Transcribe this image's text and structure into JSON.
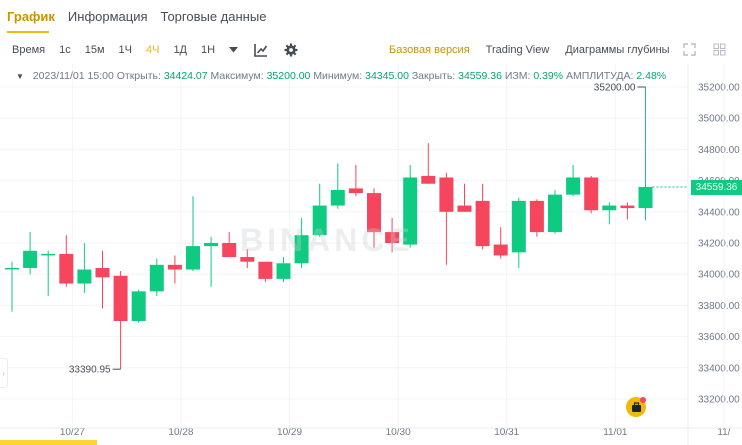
{
  "tabs": [
    {
      "label": "График",
      "active": true
    },
    {
      "label": "Информация",
      "active": false
    },
    {
      "label": "Торговые данные",
      "active": false
    }
  ],
  "toolbar": {
    "intervals": [
      "Время",
      "1с",
      "15м",
      "1Ч",
      "4Ч",
      "1Д",
      "1Н"
    ],
    "active_interval": "4Ч",
    "views": [
      "Базовая версия",
      "Trading View",
      "Диаграммы глубины"
    ],
    "active_view": "Базовая версия"
  },
  "info": {
    "datetime": "2023/11/01 15:00",
    "open_label": "Открыть:",
    "open": "34424.07",
    "high_label": "Максимум:",
    "high": "35200.00",
    "low_label": "Минимум:",
    "low": "34345.00",
    "close_label": "Закрыть:",
    "close": "34559.36",
    "change_label": "ИЗМ:",
    "change": "0.39%",
    "amp_label": "АМПЛИТУДА:",
    "amp": "2.48%"
  },
  "watermark": "BINANCE",
  "current_price": "34559.36",
  "colors": {
    "up": "#0ecb81",
    "down": "#f6465d",
    "accent": "#f0b90b",
    "grid": "#f3f4f6",
    "text": "#707a8a"
  },
  "chart_data": {
    "type": "candlestick",
    "y_ticks": [
      "35200.00",
      "35000.00",
      "34800.00",
      "34600.00",
      "34400.00",
      "34200.00",
      "34000.00",
      "33800.00",
      "33600.00",
      "33400.00",
      "33200.00"
    ],
    "ylim": [
      33110,
      35375
    ],
    "x_labels": [
      {
        "i": 1.4,
        "label": "10/27"
      },
      {
        "i": 7.4,
        "label": "10/28"
      },
      {
        "i": 13.4,
        "label": "10/29"
      },
      {
        "i": 19.4,
        "label": "10/30"
      },
      {
        "i": 25.4,
        "label": "10/31"
      },
      {
        "i": 31.4,
        "label": "11/01"
      },
      {
        "i": 37.4,
        "label": "11/"
      }
    ],
    "high_annotation": "35200.00",
    "low_annotation": "33390.95",
    "candles": [
      {
        "o": 34040,
        "h": 34080,
        "l": 33760,
        "c": 34040
      },
      {
        "o": 34040,
        "h": 34270,
        "l": 34000,
        "c": 34150
      },
      {
        "o": 34130,
        "h": 34150,
        "l": 33860,
        "c": 34130
      },
      {
        "o": 34130,
        "h": 34250,
        "l": 33920,
        "c": 33940
      },
      {
        "o": 33940,
        "h": 34200,
        "l": 33880,
        "c": 34030
      },
      {
        "o": 34040,
        "h": 34150,
        "l": 33780,
        "c": 33980
      },
      {
        "o": 33990,
        "h": 34020,
        "l": 33390.95,
        "c": 33700
      },
      {
        "o": 33700,
        "h": 33900,
        "l": 33690,
        "c": 33890
      },
      {
        "o": 33890,
        "h": 34100,
        "l": 33860,
        "c": 34060
      },
      {
        "o": 34060,
        "h": 34120,
        "l": 33940,
        "c": 34030
      },
      {
        "o": 34030,
        "h": 34500,
        "l": 34020,
        "c": 34180
      },
      {
        "o": 34180,
        "h": 34240,
        "l": 33920,
        "c": 34200
      },
      {
        "o": 34200,
        "h": 34270,
        "l": 34110,
        "c": 34110
      },
      {
        "o": 34110,
        "h": 34160,
        "l": 34040,
        "c": 34080
      },
      {
        "o": 34080,
        "h": 34080,
        "l": 33950,
        "c": 33970
      },
      {
        "o": 33970,
        "h": 34110,
        "l": 33950,
        "c": 34070
      },
      {
        "o": 34070,
        "h": 34360,
        "l": 34040,
        "c": 34250
      },
      {
        "o": 34250,
        "h": 34580,
        "l": 34240,
        "c": 34440
      },
      {
        "o": 34440,
        "h": 34710,
        "l": 34420,
        "c": 34540
      },
      {
        "o": 34550,
        "h": 34700,
        "l": 34500,
        "c": 34520
      },
      {
        "o": 34520,
        "h": 34550,
        "l": 34170,
        "c": 34270
      },
      {
        "o": 34270,
        "h": 34360,
        "l": 34140,
        "c": 34200
      },
      {
        "o": 34190,
        "h": 34700,
        "l": 34170,
        "c": 34620
      },
      {
        "o": 34630,
        "h": 34840,
        "l": 34580,
        "c": 34580
      },
      {
        "o": 34620,
        "h": 34650,
        "l": 34060,
        "c": 34400
      },
      {
        "o": 34440,
        "h": 34580,
        "l": 34400,
        "c": 34400
      },
      {
        "o": 34470,
        "h": 34580,
        "l": 34160,
        "c": 34180
      },
      {
        "o": 34190,
        "h": 34300,
        "l": 34100,
        "c": 34120
      },
      {
        "o": 34140,
        "h": 34490,
        "l": 34040,
        "c": 34470
      },
      {
        "o": 34470,
        "h": 34480,
        "l": 34240,
        "c": 34270
      },
      {
        "o": 34270,
        "h": 34540,
        "l": 34260,
        "c": 34510
      },
      {
        "o": 34510,
        "h": 34700,
        "l": 34500,
        "c": 34620
      },
      {
        "o": 34620,
        "h": 34630,
        "l": 34390,
        "c": 34410
      },
      {
        "o": 34410,
        "h": 34460,
        "l": 34320,
        "c": 34440
      },
      {
        "o": 34440,
        "h": 34460,
        "l": 34350,
        "c": 34424.07
      },
      {
        "o": 34424.07,
        "h": 35200,
        "l": 34345,
        "c": 34559.36
      }
    ]
  }
}
